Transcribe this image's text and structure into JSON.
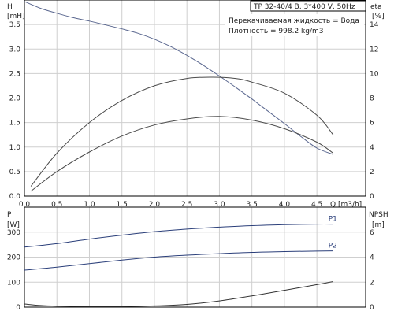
{
  "chart_data": [
    {
      "type": "line",
      "header": "TP 32-40/4 B, 3*400 V, 50Hz",
      "notes": [
        "Перекачиваемая жидкость = Вода",
        "Плотность = 998.2 kg/m3"
      ],
      "xlabel": "Q [m3/h]",
      "ylabel_left": [
        "H",
        "[mH]"
      ],
      "ylabel_right": [
        "eta",
        "[%]"
      ],
      "xlim": [
        0,
        5.25
      ],
      "ylim_left": [
        0,
        4.0
      ],
      "ylim_right": [
        0,
        16
      ],
      "x_ticks": [
        "0.0",
        "0.5",
        "1.0",
        "1.5",
        "2.0",
        "2.5",
        "3.0",
        "3.5",
        "4.0",
        "4.5"
      ],
      "y_ticks_left": [
        "0.0",
        "0.5",
        "1.0",
        "1.5",
        "2.0",
        "2.5",
        "3.0",
        "3.5"
      ],
      "y_ticks_right": [
        "0",
        "2",
        "4",
        "6",
        "8",
        "10",
        "12",
        "14"
      ],
      "grid": true,
      "series": [
        {
          "axis": "left",
          "color": "#5a678f",
          "x": [
            0.0,
            0.25,
            0.5,
            0.75,
            1.0,
            1.25,
            1.5,
            1.75,
            2.0,
            2.25,
            2.5,
            2.75,
            3.0,
            3.25,
            3.5,
            3.75,
            4.0,
            4.25,
            4.5,
            4.75
          ],
          "y": [
            3.97,
            3.83,
            3.73,
            3.64,
            3.57,
            3.49,
            3.41,
            3.32,
            3.2,
            3.05,
            2.87,
            2.67,
            2.45,
            2.22,
            1.98,
            1.73,
            1.48,
            1.22,
            0.98,
            0.85
          ]
        },
        {
          "axis": "right",
          "color": "#4a4a4a",
          "x": [
            0.1,
            0.5,
            1.0,
            1.5,
            2.0,
            2.5,
            2.9,
            3.25,
            3.5,
            4.0,
            4.5,
            4.75
          ],
          "y": [
            0.8,
            3.5,
            6.0,
            7.8,
            9.0,
            9.6,
            9.7,
            9.6,
            9.3,
            8.4,
            6.6,
            5.0
          ]
        },
        {
          "axis": "right",
          "color": "#4a4a4a",
          "x": [
            0.1,
            0.5,
            1.0,
            1.5,
            2.0,
            2.5,
            3.0,
            3.5,
            4.0,
            4.5,
            4.75
          ],
          "y": [
            0.4,
            2.0,
            3.6,
            4.9,
            5.8,
            6.3,
            6.5,
            6.2,
            5.5,
            4.4,
            3.5
          ]
        }
      ]
    },
    {
      "type": "line",
      "xlim": [
        0,
        5.25
      ],
      "ylabel_left": [
        "P",
        "[W]"
      ],
      "ylabel_right": [
        "NPSH",
        "[m]"
      ],
      "ylim_left": [
        0,
        400
      ],
      "ylim_right": [
        0,
        8
      ],
      "y_ticks_left": [
        "0",
        "100",
        "200",
        "300"
      ],
      "y_ticks_right": [
        "0",
        "2",
        "4",
        "6"
      ],
      "grid": true,
      "series": [
        {
          "name": "P1",
          "axis": "left",
          "color": "#2b3f7a",
          "x": [
            0.0,
            0.5,
            1.0,
            1.5,
            2.0,
            2.5,
            3.0,
            3.5,
            4.0,
            4.5,
            4.75
          ],
          "y": [
            240,
            254,
            272,
            288,
            302,
            312,
            320,
            326,
            330,
            332,
            332
          ]
        },
        {
          "name": "P2",
          "axis": "left",
          "color": "#2b3f7a",
          "x": [
            0.0,
            0.5,
            1.0,
            1.5,
            2.0,
            2.5,
            3.0,
            3.5,
            4.0,
            4.5,
            4.75
          ],
          "y": [
            148,
            160,
            174,
            188,
            200,
            208,
            214,
            219,
            222,
            224,
            225
          ]
        },
        {
          "axis": "right",
          "color": "#333333",
          "x": [
            0.0,
            0.25,
            0.5,
            1.0,
            1.5,
            2.0,
            2.5,
            3.0,
            3.5,
            4.0,
            4.5,
            4.75
          ],
          "y": [
            0.25,
            0.13,
            0.08,
            0.05,
            0.05,
            0.1,
            0.22,
            0.5,
            0.9,
            1.35,
            1.8,
            2.05
          ]
        }
      ]
    }
  ]
}
